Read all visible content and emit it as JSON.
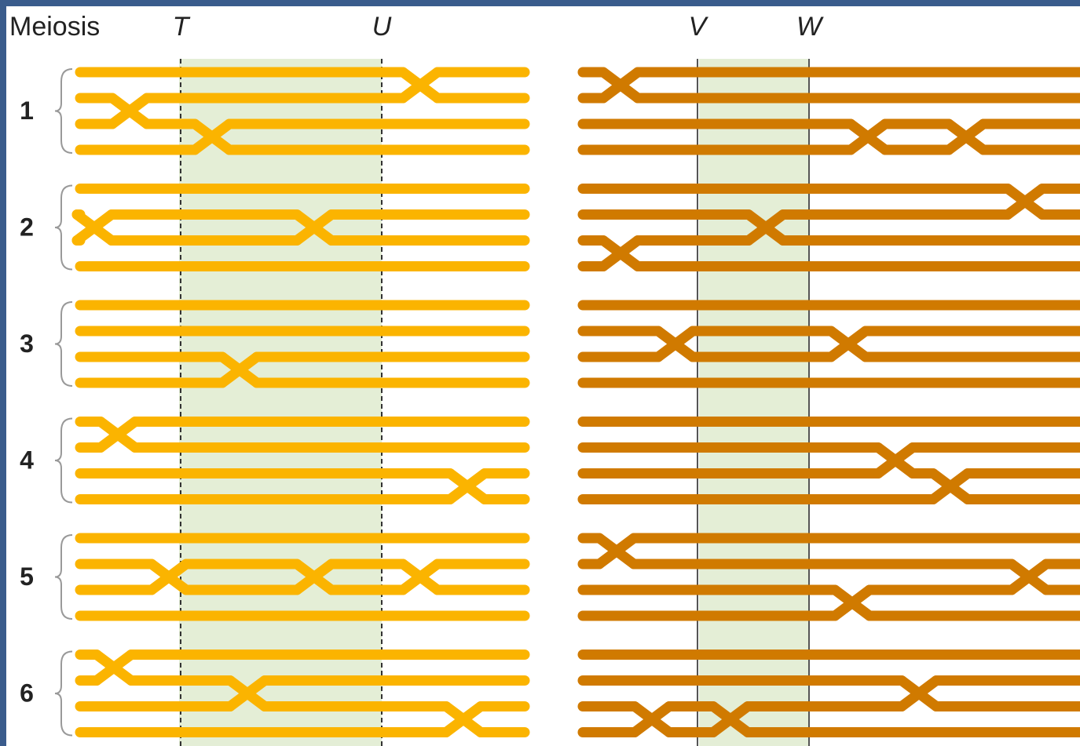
{
  "header": {
    "title": "Meiosis",
    "markers": [
      "T",
      "U",
      "V",
      "W"
    ]
  },
  "meioses": [
    "1",
    "2",
    "3",
    "4",
    "5",
    "6"
  ]
}
